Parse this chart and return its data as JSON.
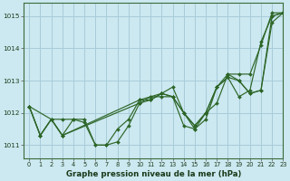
{
  "title": "Graphe pression niveau de la mer (hPa)",
  "background_color": "#cce8f0",
  "grid_color": "#a8ccda",
  "line_color": "#2d6628",
  "xlim": [
    -0.5,
    23
  ],
  "ylim": [
    1010.6,
    1015.4
  ],
  "yticks": [
    1011,
    1012,
    1013,
    1014,
    1015
  ],
  "xticks": [
    0,
    1,
    2,
    3,
    4,
    5,
    6,
    7,
    8,
    9,
    10,
    11,
    12,
    13,
    14,
    15,
    16,
    17,
    18,
    19,
    20,
    21,
    22,
    23
  ],
  "xlabel_fontsize": 7.0,
  "series": [
    {
      "x": [
        0,
        1,
        2,
        3,
        4,
        5,
        6,
        7,
        8,
        9,
        10,
        11,
        12,
        13,
        14,
        15,
        16,
        17,
        18,
        19,
        20,
        21,
        22,
        23
      ],
      "y": [
        1012.2,
        1011.3,
        1011.8,
        1011.8,
        1011.8,
        1011.8,
        1011.0,
        1011.0,
        1011.1,
        1011.6,
        1012.3,
        1012.5,
        1012.5,
        1012.5,
        1012.0,
        1011.6,
        1012.0,
        1012.8,
        1013.2,
        1013.2,
        1013.2,
        1014.1,
        1015.1,
        1015.1
      ]
    },
    {
      "x": [
        0,
        2,
        3,
        10,
        11,
        12,
        13,
        14,
        15,
        16,
        17,
        18,
        19,
        20,
        21,
        22,
        23
      ],
      "y": [
        1012.2,
        1011.8,
        1011.3,
        1012.3,
        1012.4,
        1012.6,
        1012.8,
        1012.0,
        1011.5,
        1012.0,
        1012.3,
        1013.2,
        1013.0,
        1012.6,
        1012.7,
        1015.0,
        1015.1
      ]
    },
    {
      "x": [
        0,
        1,
        2,
        3,
        10,
        11,
        12,
        13,
        14,
        15,
        16,
        17,
        18,
        19,
        20,
        21,
        22,
        23
      ],
      "y": [
        1012.2,
        1011.3,
        1011.8,
        1011.3,
        1012.4,
        1012.5,
        1012.6,
        1012.5,
        1011.6,
        1011.5,
        1011.8,
        1012.8,
        1013.1,
        1012.5,
        1012.7,
        1014.2,
        1015.0,
        1015.1
      ]
    },
    {
      "x": [
        0,
        1,
        2,
        3,
        4,
        5,
        6,
        7,
        8,
        9,
        10,
        11,
        12,
        13,
        14,
        15,
        16,
        17,
        18,
        19,
        20,
        21,
        22,
        23
      ],
      "y": [
        1012.2,
        1011.3,
        1011.8,
        1011.3,
        1011.8,
        1011.7,
        1011.0,
        1011.0,
        1011.5,
        1011.8,
        1012.4,
        1012.4,
        1012.6,
        1012.5,
        1012.0,
        1011.6,
        1012.0,
        1012.8,
        1013.1,
        1013.0,
        1012.6,
        1012.7,
        1014.8,
        1015.1
      ]
    }
  ]
}
